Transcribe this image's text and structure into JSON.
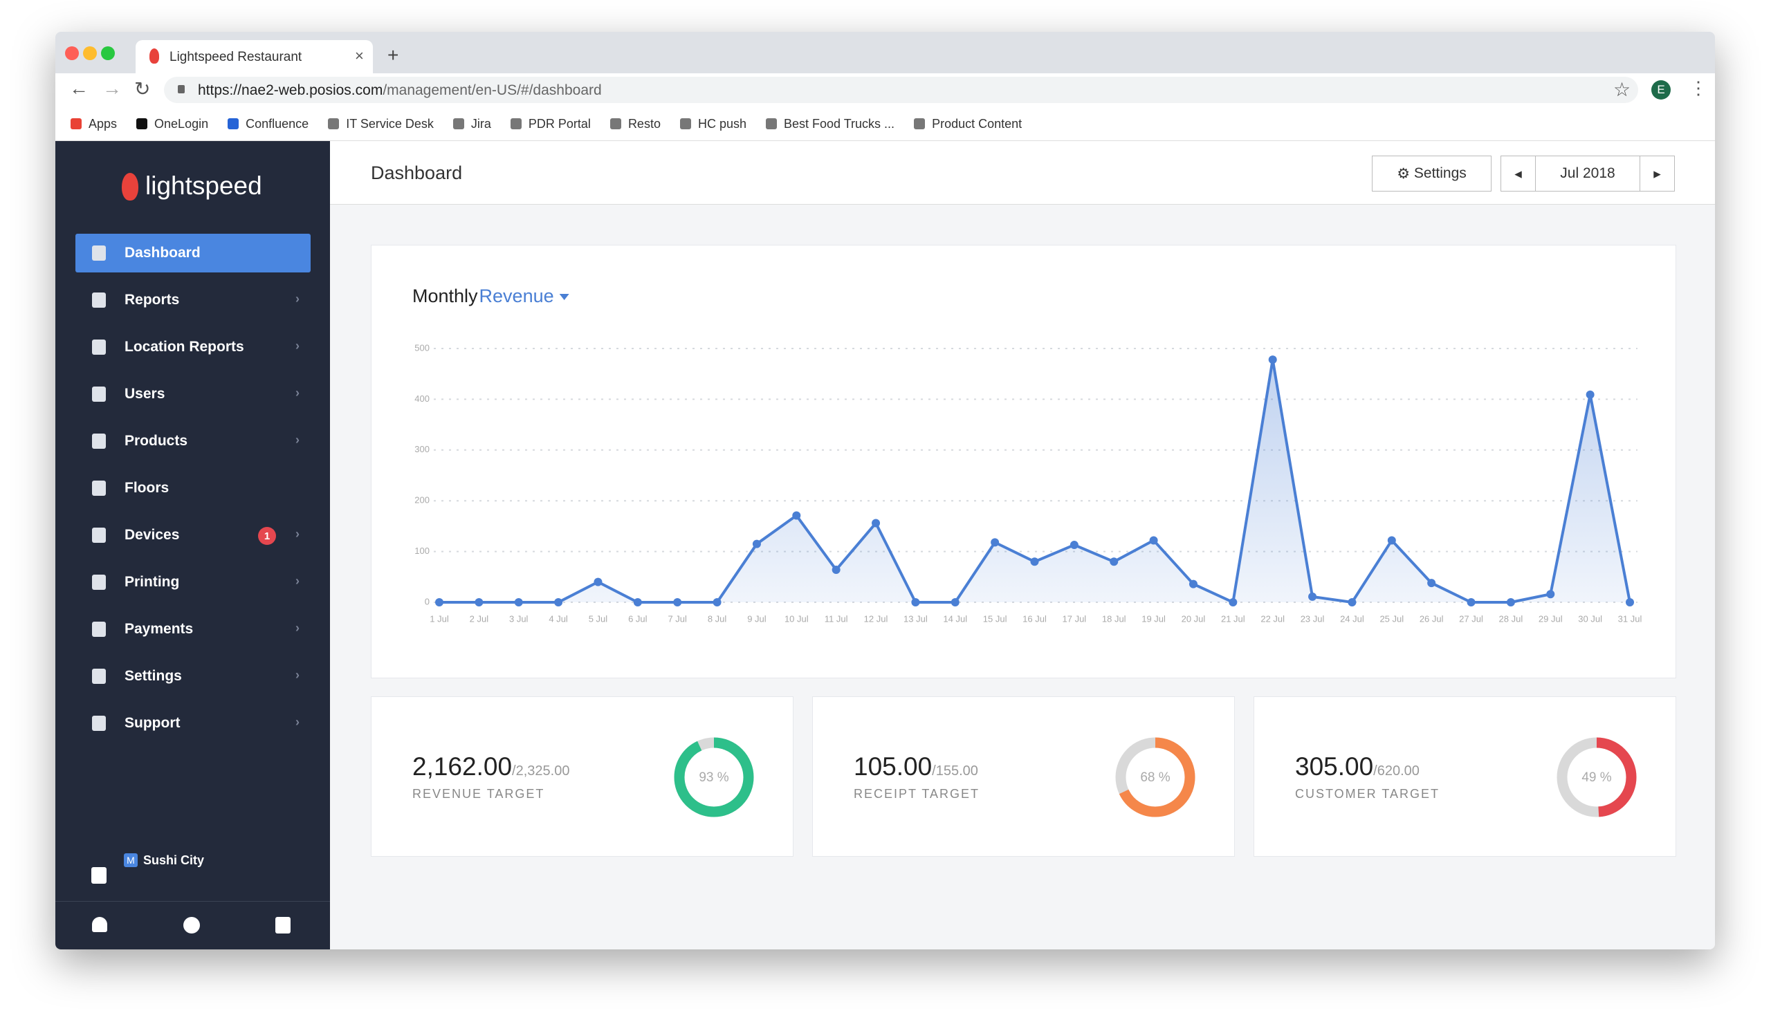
{
  "browser": {
    "tab_title": "Lightspeed Restaurant",
    "url_host": "https://nae2-web.posios.com",
    "url_path": "/management/en-US/#/dashboard",
    "profile": "E",
    "bookmarks": [
      "Apps",
      "OneLogin",
      "Confluence",
      "IT Service Desk",
      "Jira",
      "PDR Portal",
      "Resto",
      "HC push",
      "Best Food Trucks ...",
      "Product Content"
    ]
  },
  "sidebar": {
    "logo": "lightspeed",
    "nav": [
      {
        "label": "Dashboard"
      },
      {
        "label": "Reports"
      },
      {
        "label": "Location Reports"
      },
      {
        "label": "Users"
      },
      {
        "label": "Products"
      },
      {
        "label": "Floors"
      },
      {
        "label": "Devices",
        "badge": "1"
      },
      {
        "label": "Printing"
      },
      {
        "label": "Payments"
      },
      {
        "label": "Settings"
      },
      {
        "label": "Support"
      }
    ],
    "store_badge": "M",
    "store": "Sushi City"
  },
  "header": {
    "title": "Dashboard",
    "settings": "Settings",
    "period": "Jul 2018"
  },
  "chart_data": {
    "type": "line",
    "title": "Monthly",
    "metric": "Revenue",
    "color": "#4a7fd4",
    "categories": [
      "1 Jul",
      "2 Jul",
      "3 Jul",
      "4 Jul",
      "5 Jul",
      "6 Jul",
      "7 Jul",
      "8 Jul",
      "9 Jul",
      "10 Jul",
      "11 Jul",
      "12 Jul",
      "13 Jul",
      "14 Jul",
      "15 Jul",
      "16 Jul",
      "17 Jul",
      "18 Jul",
      "19 Jul",
      "20 Jul",
      "21 Jul",
      "22 Jul",
      "23 Jul",
      "24 Jul",
      "25 Jul",
      "26 Jul",
      "27 Jul",
      "28 Jul",
      "29 Jul",
      "30 Jul",
      "31 Jul"
    ],
    "values": [
      0,
      0,
      0,
      0,
      40,
      0,
      0,
      0,
      115,
      171,
      64,
      156,
      0,
      0,
      118,
      80,
      113,
      80,
      122,
      36,
      0,
      478,
      11,
      0,
      122,
      38,
      0,
      0,
      16,
      409,
      0
    ],
    "ylim": [
      0,
      500
    ],
    "yticks": [
      0,
      100,
      200,
      300,
      400,
      500
    ],
    "grid": true
  },
  "kpis": [
    {
      "value": "2,162.00",
      "target": "/2,325.00",
      "label": "REVENUE TARGET",
      "percent": 93,
      "percent_label": "93 %",
      "color": "#2dbf8a"
    },
    {
      "value": "105.00",
      "target": "/155.00",
      "label": "RECEIPT TARGET",
      "percent": 68,
      "percent_label": "68 %",
      "color": "#f5874a"
    },
    {
      "value": "305.00",
      "target": "/620.00",
      "label": "CUSTOMER TARGET",
      "percent": 49,
      "percent_label": "49 %",
      "color": "#e5474f"
    }
  ]
}
